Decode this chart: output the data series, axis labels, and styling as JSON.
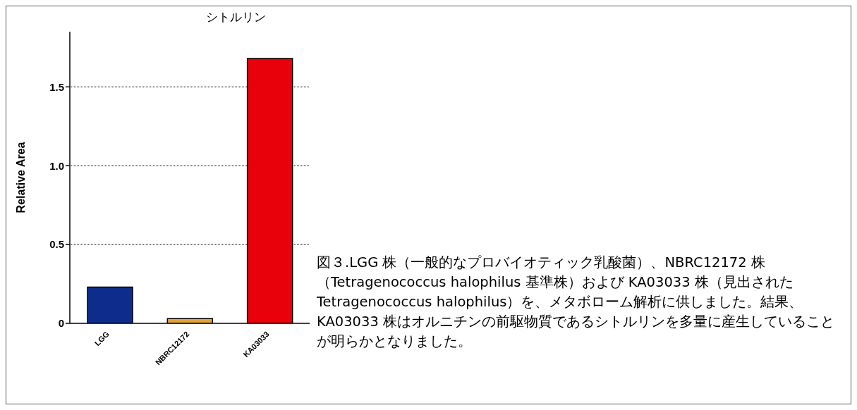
{
  "chart_data": {
    "type": "bar",
    "title": "シトルリン",
    "ylabel": "Relative Area",
    "categories": [
      "LGG",
      "NBRC12172",
      "KA03033"
    ],
    "values": [
      0.23,
      0.03,
      1.68
    ],
    "colors": [
      "#0d2c8c",
      "#e3a437",
      "#e8000b"
    ],
    "ylim": [
      0,
      1.85
    ],
    "yticks": [
      0,
      0.5,
      {
        "value": 1,
        "label": "1.0"
      },
      1.5
    ],
    "grid": "y",
    "legend": false,
    "annotations": [
      "図３.LGG 株（一般的なプロバイオティック乳酸菌）、NBRC12172 株（Tetragenococcus halophilus 基準株）および KA03033 株（見出された Tetragenococcus halophilus）を、メタボローム解析に供しました。結果、KA03033 株はオルニチンの前駆物質であるシトルリンを多量に産生していることが明らかとなりました。"
    ]
  }
}
